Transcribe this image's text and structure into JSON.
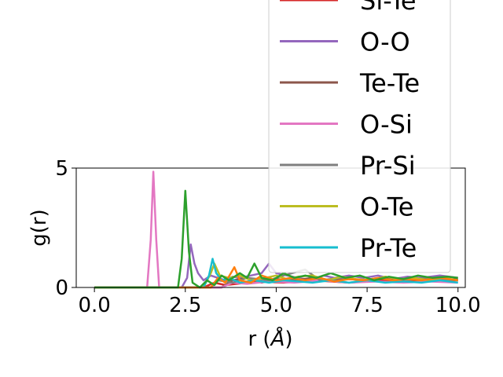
{
  "chart_data": {
    "type": "line",
    "xlabel": "r (Å)",
    "xlabel_text": "r (",
    "xlabel_unit": "Å",
    "ylabel": "g(r)",
    "xlim": [
      -0.5,
      10.2
    ],
    "ylim": [
      0,
      5
    ],
    "xticks": [
      0.0,
      2.5,
      5.0,
      7.5,
      10.0
    ],
    "xtick_labels": [
      "0.0",
      "2.5",
      "5.0",
      "7.5",
      "10.0"
    ],
    "yticks": [
      0,
      5
    ],
    "ytick_labels": [
      "0",
      "5"
    ],
    "grid": false,
    "legend_placement": "upper-right, extending above the axes",
    "series": [
      {
        "name": "Si-Te",
        "color": "#d62728",
        "points": [
          [
            0,
            0
          ],
          [
            3.0,
            0
          ],
          [
            3.3,
            0.2
          ],
          [
            3.6,
            0.1
          ],
          [
            4.5,
            0.25
          ],
          [
            5.2,
            0.2
          ],
          [
            6.0,
            0.3
          ],
          [
            7.0,
            0.2
          ],
          [
            8.0,
            0.3
          ],
          [
            9.0,
            0.25
          ],
          [
            10.0,
            0.3
          ]
        ]
      },
      {
        "name": "O-O",
        "color": "#9467bd",
        "points": [
          [
            0,
            0
          ],
          [
            2.4,
            0
          ],
          [
            2.55,
            0.4
          ],
          [
            2.65,
            1.8
          ],
          [
            2.75,
            1.0
          ],
          [
            2.85,
            0.6
          ],
          [
            3.0,
            0.3
          ],
          [
            3.2,
            0.5
          ],
          [
            3.4,
            0.4
          ],
          [
            3.6,
            0.3
          ],
          [
            3.8,
            0.45
          ],
          [
            4.0,
            0.4
          ],
          [
            4.3,
            0.5
          ],
          [
            4.6,
            0.6
          ],
          [
            4.8,
            1.0
          ],
          [
            5.0,
            0.6
          ],
          [
            5.3,
            0.5
          ],
          [
            5.6,
            0.4
          ],
          [
            6.0,
            0.3
          ],
          [
            6.3,
            0.5
          ],
          [
            6.6,
            0.4
          ],
          [
            7.0,
            0.5
          ],
          [
            7.4,
            0.4
          ],
          [
            7.8,
            0.5
          ],
          [
            8.2,
            0.35
          ],
          [
            8.6,
            0.45
          ],
          [
            9.0,
            0.4
          ],
          [
            9.5,
            0.5
          ],
          [
            10.0,
            0.4
          ]
        ]
      },
      {
        "name": "Te-Te",
        "color": "#8c564b",
        "points": [
          [
            0,
            0
          ],
          [
            3.5,
            0
          ],
          [
            3.8,
            0.3
          ],
          [
            4.2,
            0.4
          ],
          [
            4.6,
            0.2
          ],
          [
            5.0,
            0.35
          ],
          [
            5.5,
            0.3
          ],
          [
            6.0,
            0.4
          ],
          [
            6.5,
            0.3
          ],
          [
            7.0,
            0.35
          ],
          [
            7.5,
            0.3
          ],
          [
            8.0,
            0.4
          ],
          [
            8.5,
            0.3
          ],
          [
            9.0,
            0.35
          ],
          [
            9.5,
            0.3
          ],
          [
            10.0,
            0.35
          ]
        ]
      },
      {
        "name": "O-Si",
        "color": "#e377c2",
        "points": [
          [
            0,
            0
          ],
          [
            1.45,
            0
          ],
          [
            1.55,
            2.0
          ],
          [
            1.62,
            4.85
          ],
          [
            1.7,
            2.0
          ],
          [
            1.78,
            0
          ],
          [
            3.5,
            0
          ],
          [
            3.8,
            0.2
          ],
          [
            4.2,
            0.15
          ],
          [
            4.8,
            0.25
          ],
          [
            5.5,
            0.2
          ],
          [
            6.2,
            0.3
          ],
          [
            7.0,
            0.2
          ],
          [
            7.8,
            0.25
          ],
          [
            8.5,
            0.2
          ],
          [
            9.2,
            0.25
          ],
          [
            10.0,
            0.2
          ]
        ]
      },
      {
        "name": "Pr-Si",
        "color": "#7f7f7f",
        "points": [
          [
            0,
            0
          ],
          [
            3.2,
            0
          ],
          [
            3.4,
            0.3
          ],
          [
            3.8,
            0.2
          ],
          [
            4.2,
            0.4
          ],
          [
            4.8,
            0.3
          ],
          [
            5.2,
            0.5
          ],
          [
            5.8,
            0.75
          ],
          [
            6.2,
            0.3
          ],
          [
            6.8,
            0.4
          ],
          [
            7.4,
            0.3
          ],
          [
            8.0,
            0.45
          ],
          [
            8.6,
            0.3
          ],
          [
            9.2,
            0.4
          ],
          [
            10.0,
            0.3
          ]
        ]
      },
      {
        "name": "O-Te",
        "color": "#bcbd22",
        "points": [
          [
            0,
            0
          ],
          [
            3.0,
            0
          ],
          [
            3.2,
            0.6
          ],
          [
            3.3,
            1.0
          ],
          [
            3.45,
            0.5
          ],
          [
            3.7,
            0.4
          ],
          [
            4.0,
            0.5
          ],
          [
            4.3,
            0.3
          ],
          [
            4.7,
            0.4
          ],
          [
            5.0,
            0.5
          ],
          [
            5.3,
            0.35
          ],
          [
            5.6,
            0.45
          ],
          [
            6.0,
            0.5
          ],
          [
            6.4,
            0.3
          ],
          [
            6.8,
            0.45
          ],
          [
            7.2,
            0.35
          ],
          [
            7.6,
            0.3
          ],
          [
            8.0,
            0.45
          ],
          [
            8.4,
            0.35
          ],
          [
            8.8,
            0.4
          ],
          [
            9.2,
            0.3
          ],
          [
            9.6,
            0.4
          ],
          [
            10.0,
            0.3
          ]
        ]
      },
      {
        "name": "Pr-Te",
        "color": "#17becf",
        "points": [
          [
            0,
            0
          ],
          [
            3.0,
            0
          ],
          [
            3.15,
            0.5
          ],
          [
            3.25,
            1.2
          ],
          [
            3.35,
            0.6
          ],
          [
            3.5,
            0.3
          ],
          [
            3.7,
            0.4
          ],
          [
            4.0,
            0.2
          ],
          [
            4.4,
            0.3
          ],
          [
            4.8,
            0.2
          ],
          [
            5.2,
            0.3
          ],
          [
            5.6,
            0.25
          ],
          [
            6.0,
            0.2
          ],
          [
            6.5,
            0.3
          ],
          [
            7.0,
            0.2
          ],
          [
            7.5,
            0.3
          ],
          [
            8.0,
            0.2
          ],
          [
            8.5,
            0.25
          ],
          [
            9.0,
            0.2
          ],
          [
            9.5,
            0.3
          ],
          [
            10.0,
            0.2
          ]
        ]
      },
      {
        "name": "",
        "color": "#ff7f0e",
        "points": [
          [
            0,
            0
          ],
          [
            3.2,
            0
          ],
          [
            3.4,
            0.4
          ],
          [
            3.6,
            0.2
          ],
          [
            3.85,
            0.85
          ],
          [
            4.0,
            0.3
          ],
          [
            4.3,
            0.2
          ],
          [
            4.6,
            0.5
          ],
          [
            5.0,
            0.3
          ],
          [
            5.4,
            0.4
          ],
          [
            5.8,
            0.3
          ],
          [
            6.2,
            0.4
          ],
          [
            6.6,
            0.25
          ],
          [
            7.0,
            0.35
          ],
          [
            7.4,
            0.3
          ],
          [
            7.8,
            0.4
          ],
          [
            8.2,
            0.3
          ],
          [
            8.6,
            0.35
          ],
          [
            9.0,
            0.3
          ],
          [
            9.5,
            0.4
          ],
          [
            10.0,
            0.3
          ]
        ]
      },
      {
        "name": "",
        "color": "#2ca02c",
        "points": [
          [
            0,
            0
          ],
          [
            2.3,
            0
          ],
          [
            2.4,
            1.2
          ],
          [
            2.5,
            4.05
          ],
          [
            2.6,
            1.5
          ],
          [
            2.7,
            0.2
          ],
          [
            2.9,
            0
          ],
          [
            3.1,
            0.3
          ],
          [
            3.3,
            0.1
          ],
          [
            3.5,
            0.5
          ],
          [
            3.7,
            0.3
          ],
          [
            4.0,
            0.6
          ],
          [
            4.2,
            0.4
          ],
          [
            4.4,
            1.0
          ],
          [
            4.6,
            0.4
          ],
          [
            4.9,
            0.3
          ],
          [
            5.2,
            0.6
          ],
          [
            5.5,
            0.4
          ],
          [
            5.8,
            0.5
          ],
          [
            6.1,
            0.4
          ],
          [
            6.5,
            0.6
          ],
          [
            6.9,
            0.4
          ],
          [
            7.3,
            0.5
          ],
          [
            7.7,
            0.3
          ],
          [
            8.1,
            0.45
          ],
          [
            8.5,
            0.35
          ],
          [
            8.9,
            0.5
          ],
          [
            9.3,
            0.4
          ],
          [
            9.7,
            0.45
          ],
          [
            10.0,
            0.4
          ]
        ]
      }
    ]
  }
}
